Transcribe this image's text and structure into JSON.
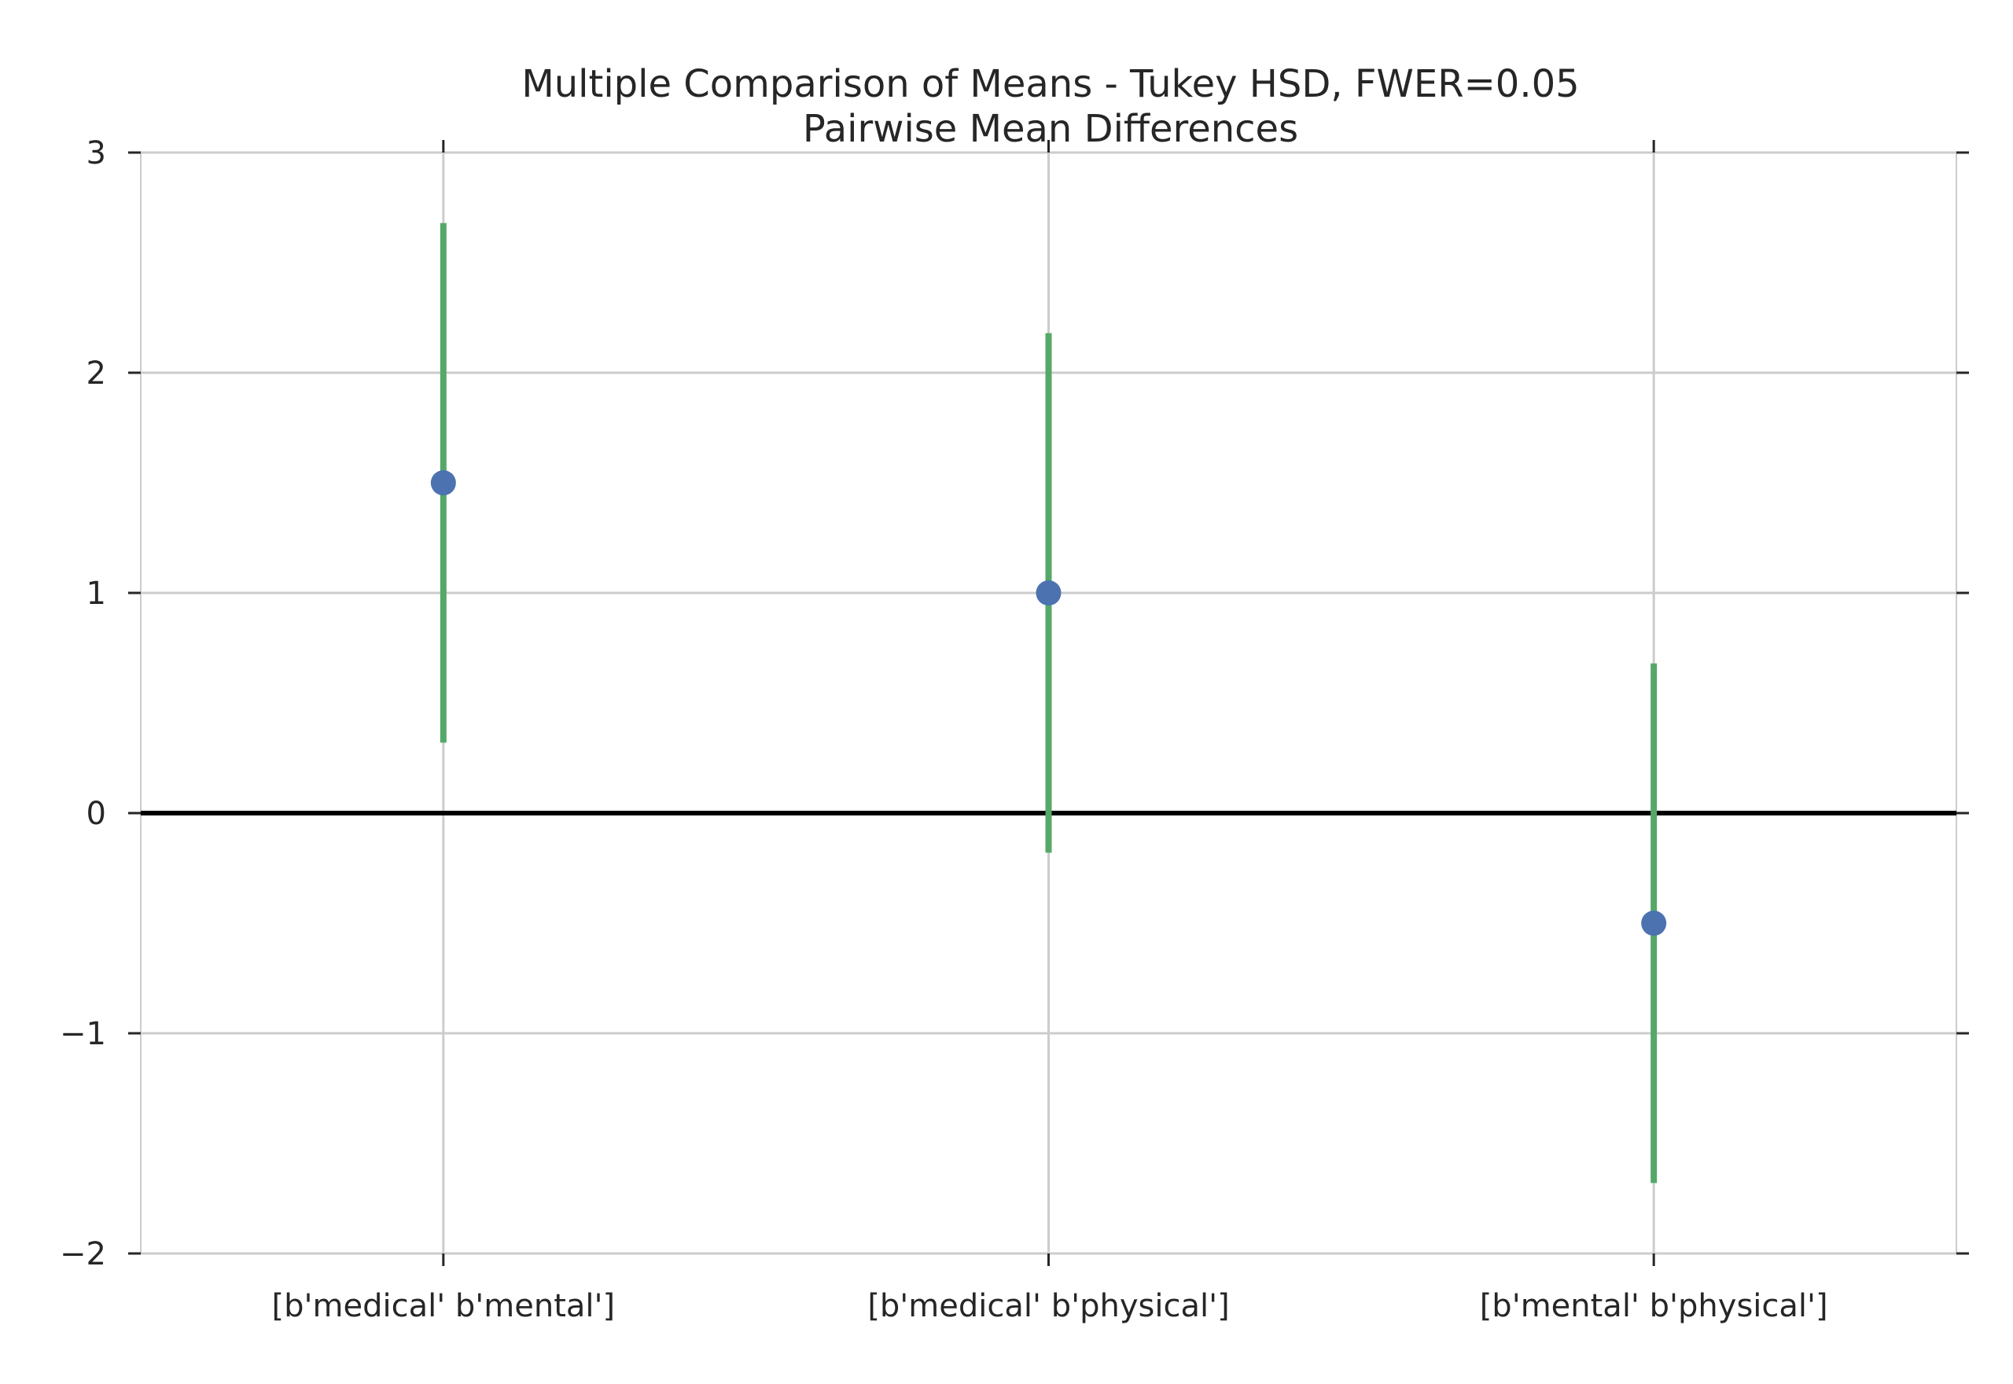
{
  "chart_data": {
    "type": "scatter",
    "title": "Multiple Comparison of Means - Tukey HSD, FWER=0.05",
    "subtitle": "Pairwise Mean Differences",
    "xlabel": "",
    "ylabel": "",
    "categories": [
      "[b'medical' b'mental']",
      "[b'medical' b'physical']",
      "[b'mental' b'physical']"
    ],
    "values": [
      1.5,
      1.0,
      -0.5
    ],
    "ci_lower": [
      0.32,
      -0.18,
      -1.68
    ],
    "ci_upper": [
      2.68,
      2.18,
      0.68
    ],
    "ylim": [
      -2,
      3
    ],
    "xlim": [
      -0.5,
      2.5
    ],
    "yticks": [
      -2,
      -1,
      0,
      1,
      2,
      3
    ],
    "ytick_labels": [
      "−2",
      "−1",
      "0",
      "1",
      "2",
      "3"
    ],
    "reference_line": 0,
    "grid": true,
    "colors": {
      "point": "#4c72b0",
      "interval": "#55a868",
      "reference": "#000000",
      "grid": "#cccccc",
      "text": "#262626"
    }
  }
}
